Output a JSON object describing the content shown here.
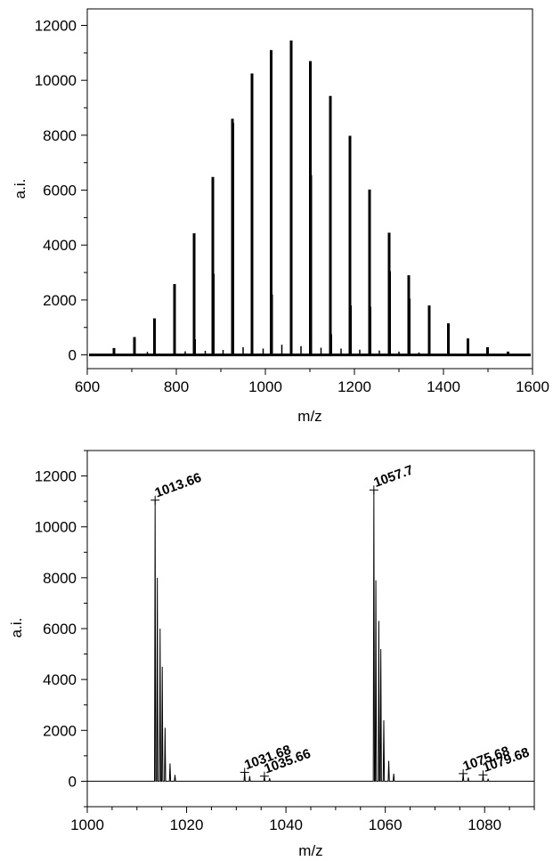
{
  "chart_data": [
    {
      "type": "bar",
      "description_kind": "mass-spectrum-stick",
      "xlabel": "m/z",
      "ylabel": "a.i.",
      "xlim": [
        600,
        1600
      ],
      "ylim": [
        -500,
        12600
      ],
      "x_ticks": [
        600,
        800,
        1000,
        1200,
        1400,
        1600
      ],
      "y_ticks": [
        0,
        2000,
        4000,
        6000,
        8000,
        10000,
        12000
      ],
      "x_minor_step": 100,
      "y_minor_step": 1000,
      "grid": false,
      "x": [
        660,
        706,
        751,
        796,
        840,
        882,
        926,
        970,
        1013,
        1058,
        1101,
        1146,
        1190,
        1234,
        1278,
        1322,
        1368,
        1411,
        1455,
        1499,
        1545
      ],
      "values": [
        250,
        650,
        1330,
        2580,
        4430,
        6480,
        8600,
        10250,
        11100,
        11450,
        10700,
        9430,
        7980,
        6020,
        4450,
        2900,
        1800,
        1150,
        600,
        280,
        120
      ],
      "secondary_x": [
        707,
        752,
        797,
        842,
        884,
        928,
        971,
        1015,
        1059,
        1103,
        1148,
        1192,
        1236,
        1280,
        1324
      ],
      "secondary_values": [
        200,
        400,
        800,
        570,
        2950,
        8450,
        500,
        2200,
        3400,
        6550,
        750,
        1800,
        1750,
        3050,
        2050
      ],
      "minor_x": [
        735,
        820,
        865,
        905,
        950,
        995,
        1037,
        1080,
        1125,
        1170,
        1212,
        1256,
        1300,
        1345
      ],
      "minor_values": [
        110,
        130,
        150,
        180,
        280,
        230,
        370,
        320,
        260,
        230,
        190,
        160,
        120,
        90
      ]
    },
    {
      "type": "line",
      "description_kind": "mass-spectrum-profile",
      "xlabel": "m/z",
      "ylabel": "a.i.",
      "xlim": [
        1000,
        1090
      ],
      "ylim": [
        -1000,
        13000
      ],
      "x_ticks": [
        1000,
        1020,
        1040,
        1060,
        1080
      ],
      "y_ticks": [
        0,
        2000,
        4000,
        6000,
        8000,
        10000,
        12000
      ],
      "x_minor_step": 5,
      "y_minor_step": 1000,
      "grid": false,
      "peaks": [
        {
          "x": 1013.66,
          "y": 11050
        },
        {
          "x": 1014.1,
          "y": 8000
        },
        {
          "x": 1014.66,
          "y": 6000
        },
        {
          "x": 1015.1,
          "y": 4500
        },
        {
          "x": 1015.66,
          "y": 2100
        },
        {
          "x": 1016.66,
          "y": 700
        },
        {
          "x": 1017.66,
          "y": 250
        },
        {
          "x": 1031.68,
          "y": 350
        },
        {
          "x": 1032.7,
          "y": 200
        },
        {
          "x": 1035.66,
          "y": 200
        },
        {
          "x": 1036.7,
          "y": 120
        },
        {
          "x": 1057.7,
          "y": 11450
        },
        {
          "x": 1058.1,
          "y": 7900
        },
        {
          "x": 1058.7,
          "y": 6300
        },
        {
          "x": 1059.1,
          "y": 5200
        },
        {
          "x": 1059.7,
          "y": 2400
        },
        {
          "x": 1060.7,
          "y": 800
        },
        {
          "x": 1061.7,
          "y": 300
        },
        {
          "x": 1075.68,
          "y": 300
        },
        {
          "x": 1076.7,
          "y": 150
        },
        {
          "x": 1079.68,
          "y": 250
        },
        {
          "x": 1080.7,
          "y": 100
        }
      ],
      "annotations": [
        {
          "text": "1013.66",
          "x": 1013.66,
          "y": 11050
        },
        {
          "text": "1057.7",
          "x": 1057.7,
          "y": 11450
        },
        {
          "text": "1031.68",
          "x": 1031.68,
          "y": 350
        },
        {
          "text": "1035.66",
          "x": 1035.66,
          "y": 200
        },
        {
          "text": "1075.68",
          "x": 1075.68,
          "y": 300
        },
        {
          "text": "1079.68",
          "x": 1079.68,
          "y": 250
        }
      ]
    }
  ]
}
